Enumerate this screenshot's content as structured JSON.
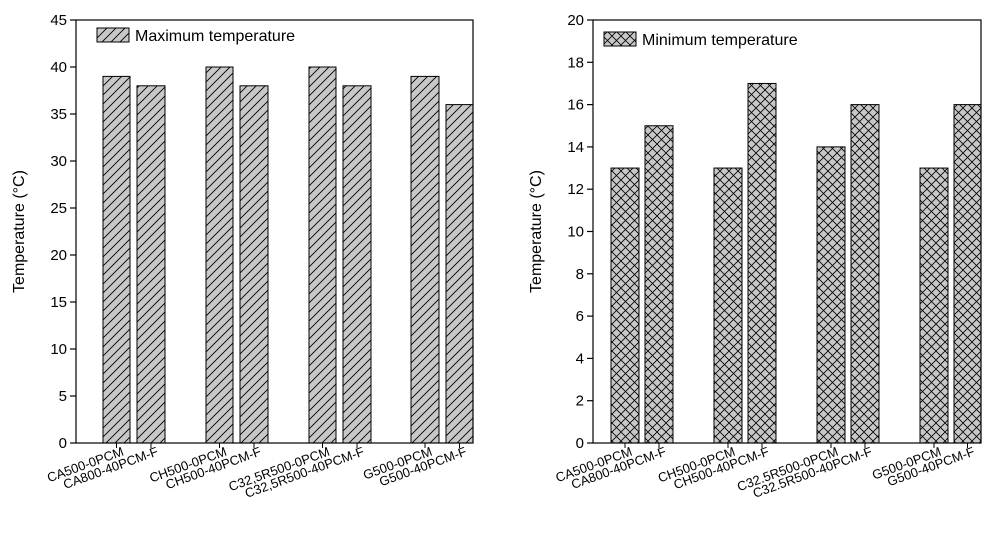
{
  "chart_data": [
    {
      "type": "bar",
      "categories": [
        "CA500-0PCM",
        "CA800-40PCM-F",
        "CH500-0PCM",
        "CH500-40PCM-F",
        "C32,5R500-0PCM",
        "C32,5R500-40PCM-F",
        "G500-0PCM",
        "G500-40PCM-F"
      ],
      "series": [
        {
          "name": "Maximum temperature",
          "values": [
            39,
            38,
            40,
            38,
            40,
            38,
            39,
            36
          ]
        }
      ],
      "title": "",
      "xlabel": "",
      "ylabel": "Temperature (°C)",
      "ylim": [
        0,
        45
      ],
      "yticks": [
        0,
        5,
        10,
        15,
        20,
        25,
        30,
        35,
        40,
        45
      ],
      "fill": "#c8c8c8",
      "hatch": "diagonal",
      "grid": false,
      "legend": "top-left"
    },
    {
      "type": "bar",
      "categories": [
        "CA500-0PCM",
        "CA800-40PCM-F",
        "CH500-0PCM",
        "CH500-40PCM-F",
        "C32.5R500-0PCM",
        "C32.5R500-40PCM-F",
        "G500-0PCM",
        "G500-40PCM-F"
      ],
      "series": [
        {
          "name": "Minimum temperature",
          "values": [
            13,
            15,
            13,
            17,
            14,
            16,
            13,
            16
          ]
        }
      ],
      "title": "",
      "xlabel": "",
      "ylabel": "Temperature (°C)",
      "ylim": [
        0,
        20
      ],
      "yticks": [
        0,
        2,
        4,
        6,
        8,
        10,
        12,
        14,
        16,
        18,
        20
      ],
      "fill": "#c8c8c8",
      "hatch": "crosshatch",
      "grid": false,
      "legend": "top-left"
    }
  ]
}
